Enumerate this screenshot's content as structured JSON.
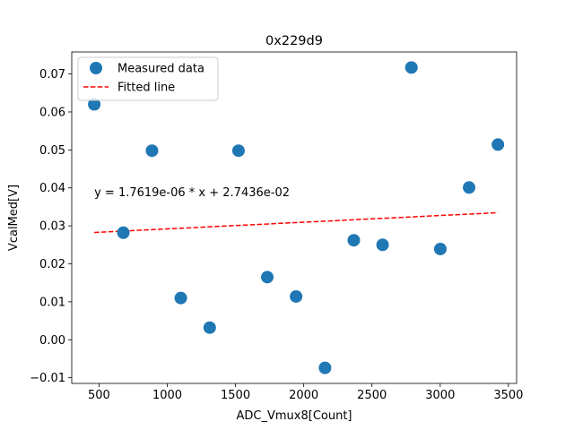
{
  "chart_data": {
    "type": "scatter",
    "title": "0x229d9",
    "xlabel": "ADC_Vmux8[Count]",
    "ylabel": "VcalMed[V]",
    "xlim": [
      300,
      3560
    ],
    "ylim": [
      -0.0115,
      0.0758
    ],
    "xticks": [
      500,
      1000,
      1500,
      2000,
      2500,
      3000,
      3500
    ],
    "xtick_labels": [
      "500",
      "1000",
      "1500",
      "2000",
      "2500",
      "3000",
      "3500"
    ],
    "yticks": [
      -0.01,
      0.0,
      0.01,
      0.02,
      0.03,
      0.04,
      0.05,
      0.06,
      0.07
    ],
    "ytick_labels": [
      "−0.01",
      "0.00",
      "0.01",
      "0.02",
      "0.03",
      "0.04",
      "0.05",
      "0.06",
      "0.07"
    ],
    "grid": false,
    "legend_position": "top-left",
    "series": [
      {
        "name": "Measured data",
        "kind": "scatter",
        "color": "#1f77b4",
        "x": [
          465,
          678,
          888,
          1099,
          1311,
          1522,
          1733,
          1944,
          2156,
          2367,
          2578,
          2789,
          3001,
          3212,
          3423
        ],
        "y": [
          0.062,
          0.0282,
          0.0498,
          0.011,
          0.0032,
          0.0498,
          0.0165,
          0.0114,
          -0.0074,
          0.0262,
          0.025,
          0.0717,
          0.0239,
          0.0401,
          0.0514
        ]
      },
      {
        "name": "Fitted line",
        "kind": "line",
        "style": "dashed",
        "color": "#ff0000",
        "x": [
          465,
          3423
        ],
        "y": [
          0.028256,
          0.033467
        ]
      }
    ],
    "annotation": {
      "text": "y = 1.7619e-06 * x + 2.7436e-02",
      "x": 465,
      "y": 0.039
    }
  }
}
